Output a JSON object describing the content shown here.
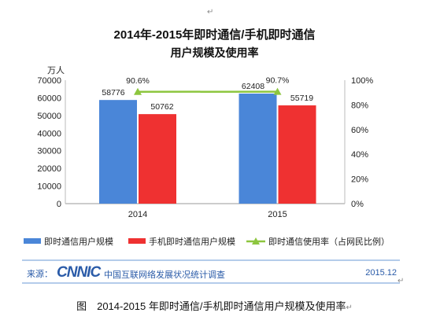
{
  "title_line1": "2014年-2015年即时通信/手机即时通信",
  "title_line2": "用户规模及使用率",
  "return_mark": "↵",
  "source": {
    "label": "来源：",
    "logo": "CNNIC",
    "org": "中国互联网络发展状况统计调查",
    "date": "2015.12"
  },
  "caption": "图　2014-2015 年即时通信/手机即时通信用户规模及使用率",
  "chart_data": {
    "type": "bar",
    "categories": [
      "2014",
      "2015"
    ],
    "series": [
      {
        "name": "即时通信用户规模",
        "values": [
          58776,
          62408
        ],
        "color": "#4a86d8"
      },
      {
        "name": "手机即时通信用户规模",
        "values": [
          50762,
          55719
        ],
        "color": "#ef3131"
      }
    ],
    "line_series": {
      "name": "即时通信使用率（占网民比例）",
      "values": [
        90.6,
        90.7
      ],
      "labels": [
        "90.6%",
        "90.7%"
      ],
      "color": "#8dc63f"
    },
    "y_unit": "万人",
    "ylim": [
      0,
      70000
    ],
    "y_ticks": [
      "0",
      "10000",
      "20000",
      "30000",
      "40000",
      "50000",
      "60000",
      "70000"
    ],
    "y2lim": [
      0,
      100
    ],
    "y2_ticks": [
      "0%",
      "20%",
      "40%",
      "60%",
      "80%",
      "100%"
    ],
    "legend_position": "bottom"
  }
}
